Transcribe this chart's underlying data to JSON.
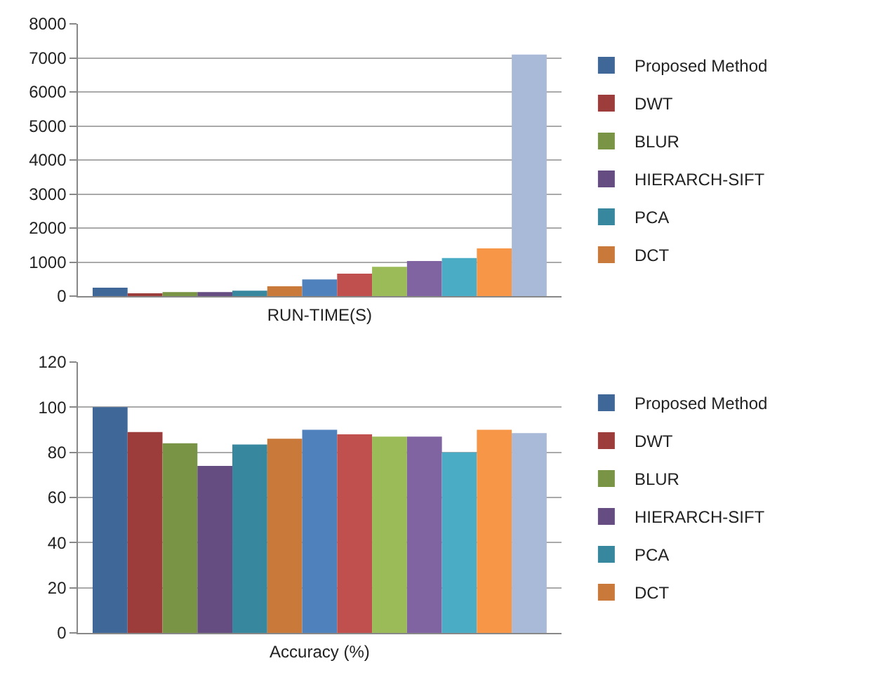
{
  "chart_data": [
    {
      "type": "bar",
      "xlabel": "RUN-TIME(S)",
      "categories": [
        null
      ],
      "ylim": [
        0,
        8000
      ],
      "yticks": [
        0,
        1000,
        2000,
        3000,
        4000,
        5000,
        6000,
        7000,
        8000
      ],
      "grid": "y",
      "legend": "right",
      "series": [
        {
          "name": "Proposed Method",
          "color": "#3f6898",
          "values": [
            250
          ]
        },
        {
          "name": "DWT",
          "color": "#9c3d3b",
          "values": [
            80
          ]
        },
        {
          "name": "BLUR",
          "color": "#7a9446",
          "values": [
            120
          ]
        },
        {
          "name": "HIERARCH-SIFT",
          "color": "#654d82",
          "values": [
            120
          ]
        },
        {
          "name": "PCA",
          "color": "#37879f",
          "values": [
            160
          ]
        },
        {
          "name": "DCT",
          "color": "#c9793a",
          "values": [
            290
          ]
        },
        {
          "color": "#4f81bd",
          "values": [
            490
          ]
        },
        {
          "color": "#c0504d",
          "values": [
            660
          ]
        },
        {
          "color": "#9bbb59",
          "values": [
            860
          ]
        },
        {
          "color": "#8064a2",
          "values": [
            1030
          ]
        },
        {
          "color": "#4bacc6",
          "values": [
            1120
          ]
        },
        {
          "color": "#f79646",
          "values": [
            1400
          ]
        },
        {
          "color": "#a9b9d8",
          "values": [
            7100
          ]
        }
      ]
    },
    {
      "type": "bar",
      "xlabel": "Accuracy (%)",
      "categories": [
        null
      ],
      "ylim": [
        0,
        120
      ],
      "yticks": [
        0,
        20,
        40,
        60,
        80,
        100,
        120
      ],
      "grid": "y",
      "legend": "right",
      "series": [
        {
          "name": "Proposed Method",
          "color": "#3f6898",
          "values": [
            100
          ]
        },
        {
          "name": "DWT",
          "color": "#9c3d3b",
          "values": [
            89
          ]
        },
        {
          "name": "BLUR",
          "color": "#7a9446",
          "values": [
            84
          ]
        },
        {
          "name": "HIERARCH-SIFT",
          "color": "#654d82",
          "values": [
            74
          ]
        },
        {
          "name": "PCA",
          "color": "#37879f",
          "values": [
            83.5
          ]
        },
        {
          "name": "DCT",
          "color": "#c9793a",
          "values": [
            86
          ]
        },
        {
          "color": "#4f81bd",
          "values": [
            90
          ]
        },
        {
          "color": "#c0504d",
          "values": [
            88
          ]
        },
        {
          "color": "#9bbb59",
          "values": [
            87
          ]
        },
        {
          "color": "#8064a2",
          "values": [
            87
          ]
        },
        {
          "color": "#4bacc6",
          "values": [
            80
          ]
        },
        {
          "color": "#f79646",
          "values": [
            90
          ]
        },
        {
          "color": "#a9b9d8",
          "values": [
            88.5
          ]
        }
      ]
    }
  ]
}
